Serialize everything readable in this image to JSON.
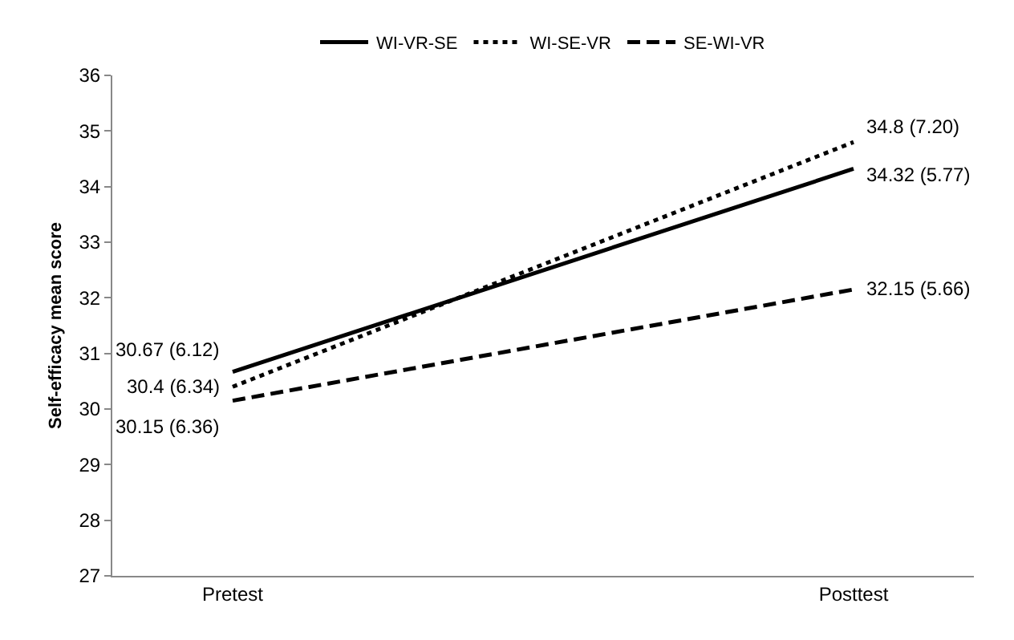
{
  "chart_data": {
    "type": "line",
    "ylabel": "Self-efficacy mean score",
    "categories": [
      "Pretest",
      "Posttest"
    ],
    "ylim": [
      27,
      36
    ],
    "yticks": [
      27,
      28,
      29,
      30,
      31,
      32,
      33,
      34,
      35,
      36
    ],
    "grid": false,
    "legend": "top",
    "marker": "none",
    "series": [
      {
        "name": "WI-VR-SE",
        "color": "#000000",
        "line_style": "solid",
        "values": [
          30.67,
          34.32
        ],
        "value_labels": [
          "30.67 (6.12)",
          "34.32 (5.77)"
        ]
      },
      {
        "name": "WI-SE-VR",
        "color": "#000000",
        "line_style": "dotted",
        "values": [
          30.4,
          34.8
        ],
        "value_labels": [
          "30.4 (6.34)",
          "34.8 (7.20)"
        ]
      },
      {
        "name": "SE-WI-VR",
        "color": "#000000",
        "line_style": "dashed",
        "values": [
          30.15,
          32.15
        ],
        "value_labels": [
          "30.15 (6.36)",
          "32.15 (5.66)"
        ]
      }
    ]
  }
}
